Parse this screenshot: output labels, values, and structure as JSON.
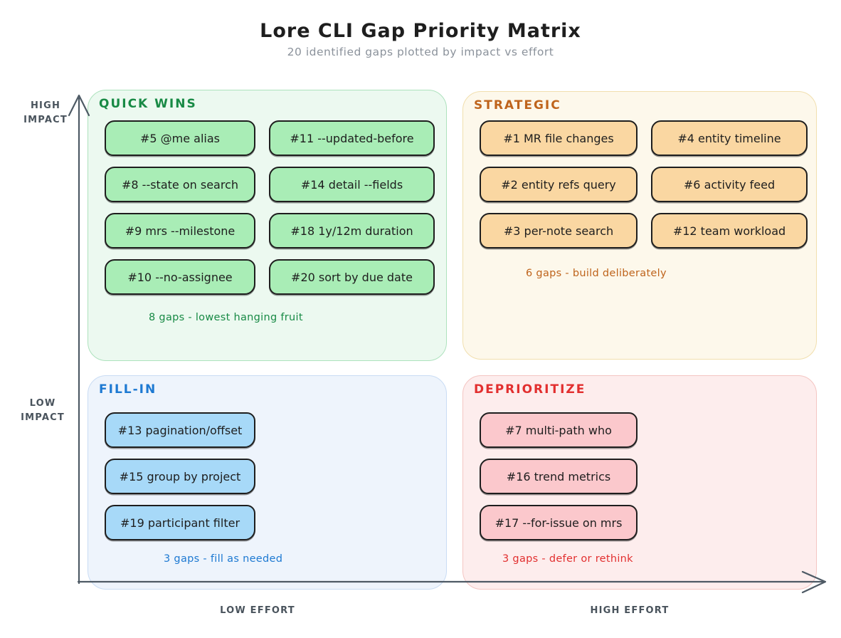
{
  "title": "Lore CLI Gap Priority Matrix",
  "subtitle": "20 identified gaps plotted by impact vs effort",
  "axes": {
    "y_high_label": "HIGH\nIMPACT",
    "y_low_label": "LOW\nIMPACT",
    "x_low_label": "LOW EFFORT",
    "x_high_label": "HIGH EFFORT",
    "axis_color": "#4e5a65",
    "label_color": "#49535c"
  },
  "colors": {
    "title": "#1e1e1e",
    "subtitle": "#8b929b",
    "item_border": "#1e1e1e"
  },
  "quadrants": [
    {
      "id": "quick-wins",
      "label": "QUICK WINS",
      "caption": "8 gaps - lowest hanging fruit",
      "colors": {
        "bg": "#ecf9f0",
        "border": "#ade2bd",
        "accent": "#188a45",
        "item": "#a9edb6"
      },
      "items": [
        "#5 @me alias",
        "#11 --updated-before",
        "#8 --state on search",
        "#14 detail --fields",
        "#9 mrs --milestone",
        "#18 1y/12m duration",
        "#10 --no-assignee",
        "#20 sort by due date"
      ]
    },
    {
      "id": "strategic",
      "label": "STRATEGIC",
      "caption": "6 gaps - build deliberately",
      "colors": {
        "bg": "#fdf8eb",
        "border": "#f1dfae",
        "accent": "#bf641c",
        "item": "#fad7a2"
      },
      "items": [
        "#1 MR file changes",
        "#4 entity timeline",
        "#2 entity refs query",
        "#6 activity feed",
        "#3 per-note search",
        "#12 team workload"
      ]
    },
    {
      "id": "fill-in",
      "label": "FILL-IN",
      "caption": "3 gaps - fill as needed",
      "colors": {
        "bg": "#eef4fc",
        "border": "#c9dcf4",
        "accent": "#1d79d2",
        "item": "#a7d9f8"
      },
      "items": [
        "#13 pagination/offset",
        "#15 group by project",
        "#19 participant filter"
      ]
    },
    {
      "id": "deprioritize",
      "label": "DEPRIORITIZE",
      "caption": "3 gaps - defer or rethink",
      "colors": {
        "bg": "#fdeded",
        "border": "#f4c5c2",
        "accent": "#e22f2f",
        "item": "#fbc8cc"
      },
      "items": [
        "#7 multi-path who",
        "#16 trend metrics",
        "#17 --for-issue on mrs"
      ]
    }
  ]
}
